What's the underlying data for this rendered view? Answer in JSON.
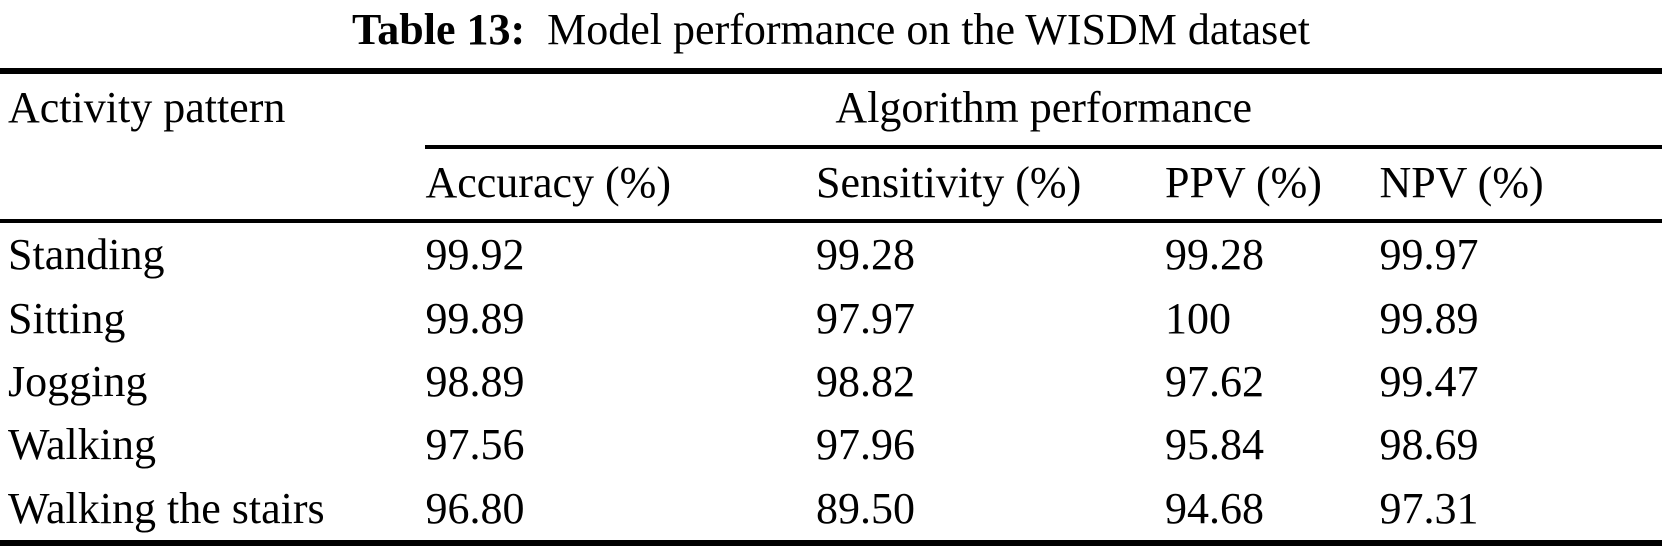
{
  "caption": {
    "label": "Table 13:",
    "text": "Model performance on the WISDM dataset"
  },
  "table": {
    "stub_header": "Activity pattern",
    "group_header": "Algorithm performance",
    "columns": [
      "Accuracy (%)",
      "Sensitivity (%)",
      "PPV (%)",
      "NPV (%)"
    ],
    "rows": [
      {
        "activity": "Standing",
        "values": [
          "99.92",
          "99.28",
          "99.28",
          "99.97"
        ]
      },
      {
        "activity": "Sitting",
        "values": [
          "99.89",
          "97.97",
          "100",
          "99.89"
        ]
      },
      {
        "activity": "Jogging",
        "values": [
          "98.89",
          "98.82",
          "97.62",
          "99.47"
        ]
      },
      {
        "activity": "Walking",
        "values": [
          "97.56",
          "97.96",
          "95.84",
          "98.69"
        ]
      },
      {
        "activity": "Walking the stairs",
        "values": [
          "96.80",
          "89.50",
          "94.68",
          "97.31"
        ]
      }
    ]
  },
  "colors": {
    "text": "#000000",
    "background": "#ffffff",
    "rule": "#000000"
  }
}
